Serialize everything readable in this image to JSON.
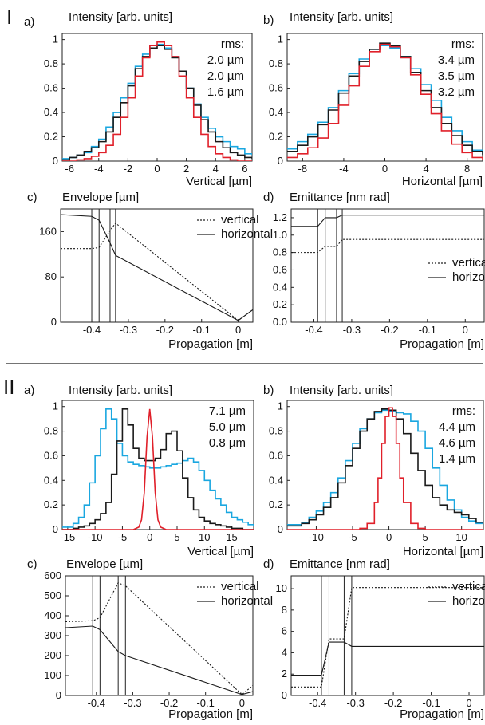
{
  "colors": {
    "blue": "#1aa7e0",
    "black": "#1a1a1a",
    "red": "#e0202a"
  },
  "sections": [
    "I",
    "II"
  ],
  "divider": true,
  "chart_data": [
    {
      "id": "Ia",
      "type": "line",
      "section": "I",
      "panel": "a)",
      "title": "Intensity [arb. units]",
      "xlabel": "Vertical [µm]",
      "ylabel": "",
      "xlim": [
        -6.5,
        6.5
      ],
      "ylim": [
        0,
        1.05
      ],
      "xticks": [
        -6,
        -4,
        -2,
        0,
        2,
        4,
        6
      ],
      "yticks": [
        0,
        0.2,
        0.4,
        0.6,
        0.8,
        1
      ],
      "legend_title": "rms:",
      "series": [
        {
          "name": "2.0 µm",
          "color": "blue",
          "step": true,
          "x": [
            -6.5,
            -6,
            -5.5,
            -5,
            -4.5,
            -4,
            -3.5,
            -3,
            -2.5,
            -2,
            -1.5,
            -1,
            -0.5,
            0,
            0.5,
            1,
            1.5,
            2,
            2.5,
            3,
            3.5,
            4,
            4.5,
            5,
            5.5,
            6,
            6.5
          ],
          "y": [
            0.02,
            0.03,
            0.05,
            0.07,
            0.12,
            0.18,
            0.28,
            0.4,
            0.52,
            0.64,
            0.78,
            0.88,
            0.95,
            0.96,
            0.93,
            0.86,
            0.74,
            0.6,
            0.47,
            0.36,
            0.27,
            0.2,
            0.16,
            0.12,
            0.1,
            0.06,
            0.05
          ]
        },
        {
          "name": "2.0 µm",
          "color": "black",
          "step": true,
          "x": [
            -6.5,
            -6,
            -5.5,
            -5,
            -4.5,
            -4,
            -3.5,
            -3,
            -2.5,
            -2,
            -1.5,
            -1,
            -0.5,
            0,
            0.5,
            1,
            1.5,
            2,
            2.5,
            3,
            3.5,
            4,
            4.5,
            5,
            5.5,
            6,
            6.5
          ],
          "y": [
            0.01,
            0.03,
            0.05,
            0.08,
            0.11,
            0.16,
            0.24,
            0.36,
            0.48,
            0.62,
            0.76,
            0.86,
            0.93,
            0.95,
            0.92,
            0.85,
            0.74,
            0.6,
            0.46,
            0.34,
            0.24,
            0.16,
            0.11,
            0.07,
            0.05,
            0.03,
            0.02
          ]
        },
        {
          "name": "1.6 µm",
          "color": "red",
          "step": true,
          "x": [
            -6.5,
            -6,
            -5.5,
            -5,
            -4.5,
            -4,
            -3.5,
            -3,
            -2.5,
            -2,
            -1.5,
            -1,
            -0.5,
            0,
            0.5,
            1,
            1.5,
            2,
            2.5,
            3,
            3.5,
            4,
            4.5,
            5,
            5.5,
            6,
            6.5
          ],
          "y": [
            0,
            0,
            0.01,
            0.02,
            0.04,
            0.07,
            0.13,
            0.22,
            0.36,
            0.52,
            0.7,
            0.85,
            0.95,
            0.98,
            0.95,
            0.86,
            0.7,
            0.52,
            0.36,
            0.22,
            0.12,
            0.06,
            0.03,
            0.01,
            0,
            0,
            0
          ]
        }
      ]
    },
    {
      "id": "Ib",
      "type": "line",
      "section": "I",
      "panel": "b)",
      "title": "Intensity [arb. units]",
      "xlabel": "Horizontal [µm]",
      "ylabel": "",
      "xlim": [
        -9.5,
        9.5
      ],
      "ylim": [
        0,
        1.05
      ],
      "xticks": [
        -8,
        -4,
        0,
        4,
        8
      ],
      "yticks": [
        0,
        0.2,
        0.4,
        0.6,
        0.8,
        1
      ],
      "legend_title": "rms:",
      "series": [
        {
          "name": "3.4 µm",
          "color": "blue",
          "step": true,
          "x": [
            -9.5,
            -8.5,
            -7.5,
            -6.5,
            -5.5,
            -4.5,
            -3.5,
            -2.5,
            -1.5,
            -0.5,
            0.5,
            1.5,
            2.5,
            3.5,
            4.5,
            5.5,
            6.5,
            7.5,
            8.5,
            9.5
          ],
          "y": [
            0.1,
            0.16,
            0.22,
            0.32,
            0.44,
            0.58,
            0.72,
            0.84,
            0.92,
            0.95,
            0.93,
            0.86,
            0.76,
            0.63,
            0.5,
            0.36,
            0.25,
            0.16,
            0.09,
            0.06
          ]
        },
        {
          "name": "3.5 µm",
          "color": "black",
          "step": true,
          "x": [
            -9.5,
            -8.5,
            -7.5,
            -6.5,
            -5.5,
            -4.5,
            -3.5,
            -2.5,
            -1.5,
            -0.5,
            0.5,
            1.5,
            2.5,
            3.5,
            4.5,
            5.5,
            6.5,
            7.5,
            8.5,
            9.5
          ],
          "y": [
            0.08,
            0.13,
            0.2,
            0.3,
            0.42,
            0.56,
            0.7,
            0.82,
            0.92,
            0.97,
            0.95,
            0.86,
            0.73,
            0.58,
            0.44,
            0.31,
            0.21,
            0.13,
            0.08,
            0.05
          ]
        },
        {
          "name": "3.2 µm",
          "color": "red",
          "step": true,
          "x": [
            -9.5,
            -8.5,
            -7.5,
            -6.5,
            -5.5,
            -4.5,
            -3.5,
            -2.5,
            -1.5,
            -0.5,
            0.5,
            1.5,
            2.5,
            3.5,
            4.5,
            5.5,
            6.5,
            7.5,
            8.5,
            9.5
          ],
          "y": [
            0.03,
            0.06,
            0.11,
            0.19,
            0.31,
            0.46,
            0.62,
            0.78,
            0.9,
            0.96,
            0.94,
            0.85,
            0.71,
            0.55,
            0.39,
            0.25,
            0.14,
            0.07,
            0.03,
            0.01
          ]
        }
      ]
    },
    {
      "id": "Ic",
      "type": "line",
      "section": "I",
      "panel": "c)",
      "title": "Envelope [µm]",
      "xlabel": "Propagation [m]",
      "ylabel": "",
      "xlim": [
        -0.485,
        0.04
      ],
      "ylim": [
        0,
        200
      ],
      "xticks": [
        -0.4,
        -0.3,
        -0.2,
        -0.1,
        0
      ],
      "yticks": [
        0,
        80,
        160
      ],
      "vlines": [
        -0.4,
        -0.38,
        -0.35,
        -0.335
      ],
      "series": [
        {
          "name": "vertical",
          "dash": true,
          "x": [
            -0.485,
            -0.4,
            -0.38,
            -0.35,
            -0.335,
            0,
            0.04
          ],
          "y": [
            130,
            130,
            132,
            162,
            175,
            3,
            22
          ]
        },
        {
          "name": "horizontal",
          "dash": false,
          "x": [
            -0.485,
            -0.4,
            -0.38,
            -0.35,
            -0.335,
            0,
            0.04
          ],
          "y": [
            190,
            187,
            180,
            140,
            118,
            3,
            22
          ]
        }
      ]
    },
    {
      "id": "Id",
      "type": "line",
      "section": "I",
      "panel": "d)",
      "title": "Emittance [nm rad]",
      "xlabel": "Propagation [m]",
      "ylabel": "",
      "xlim": [
        -0.46,
        0.05
      ],
      "ylim": [
        0,
        1.3
      ],
      "xticks": [
        -0.4,
        -0.3,
        -0.2,
        -0.1,
        0
      ],
      "yticks": [
        0,
        0.2,
        0.4,
        0.6,
        0.8,
        1.0,
        1.2
      ],
      "vlines": [
        -0.39,
        -0.37,
        -0.34,
        -0.325
      ],
      "series": [
        {
          "name": "vertical",
          "dash": true,
          "x": [
            -0.46,
            -0.39,
            -0.37,
            -0.34,
            -0.325,
            0.05
          ],
          "y": [
            0.8,
            0.8,
            0.87,
            0.87,
            0.95,
            0.95
          ]
        },
        {
          "name": "horizontal",
          "dash": false,
          "x": [
            -0.46,
            -0.39,
            -0.37,
            -0.34,
            -0.325,
            0.05
          ],
          "y": [
            1.1,
            1.1,
            1.2,
            1.2,
            1.23,
            1.23
          ]
        }
      ]
    },
    {
      "id": "IIa",
      "type": "line",
      "section": "II",
      "panel": "a)",
      "title": "Intensity [arb. units]",
      "xlabel": "Vertical [µm]",
      "ylabel": "",
      "xlim": [
        -16,
        19
      ],
      "ylim": [
        0,
        1.05
      ],
      "xticks": [
        -15,
        -10,
        -5,
        0,
        5,
        10,
        15
      ],
      "yticks": [
        0,
        0.2,
        0.4,
        0.6,
        0.8,
        1
      ],
      "legend_title": "",
      "series": [
        {
          "name": "7.1 µm",
          "color": "blue",
          "step": true,
          "x": [
            -16,
            -14,
            -13,
            -12,
            -11,
            -10,
            -9,
            -8,
            -7,
            -6,
            -5,
            -4,
            -3,
            -2,
            -1,
            0,
            1,
            2,
            3,
            4,
            5,
            6,
            7,
            8,
            9,
            10,
            11,
            12,
            13,
            14,
            15,
            16,
            17,
            18,
            19
          ],
          "y": [
            0.02,
            0.05,
            0.1,
            0.2,
            0.38,
            0.6,
            0.82,
            0.98,
            0.9,
            0.7,
            0.6,
            0.55,
            0.53,
            0.52,
            0.51,
            0.5,
            0.5,
            0.51,
            0.52,
            0.53,
            0.54,
            0.56,
            0.58,
            0.55,
            0.48,
            0.4,
            0.32,
            0.25,
            0.2,
            0.14,
            0.1,
            0.08,
            0.06,
            0.04,
            0.03
          ]
        },
        {
          "name": "5.0 µm",
          "color": "black",
          "step": true,
          "x": [
            -16,
            -14,
            -13,
            -12,
            -11,
            -10,
            -9,
            -8,
            -7,
            -6,
            -5,
            -4,
            -3,
            -2,
            -1,
            0,
            1,
            2,
            3,
            4,
            5,
            6,
            7,
            8,
            9,
            10,
            11,
            12,
            13,
            14,
            15,
            16,
            17,
            18,
            19
          ],
          "y": [
            0,
            0.01,
            0.02,
            0.03,
            0.05,
            0.08,
            0.13,
            0.22,
            0.45,
            0.72,
            0.98,
            0.85,
            0.66,
            0.58,
            0.56,
            0.56,
            0.58,
            0.65,
            0.78,
            0.8,
            0.64,
            0.42,
            0.26,
            0.16,
            0.1,
            0.07,
            0.05,
            0.04,
            0.03,
            0.02,
            0.01,
            0.01,
            0,
            0,
            0
          ]
        },
        {
          "name": "0.8 µm",
          "color": "red",
          "step": false,
          "x": [
            -16,
            -3,
            -2,
            -1.5,
            -1,
            -0.5,
            0,
            0.5,
            1,
            1.5,
            2,
            3,
            19
          ],
          "y": [
            0,
            0,
            0.02,
            0.08,
            0.3,
            0.75,
            0.98,
            0.75,
            0.3,
            0.08,
            0.02,
            0,
            0
          ]
        }
      ]
    },
    {
      "id": "IIb",
      "type": "line",
      "section": "II",
      "panel": "b)",
      "title": "Intensity [arb. units]",
      "xlabel": "Horizontal [µm]",
      "ylabel": "",
      "xlim": [
        -14,
        13
      ],
      "ylim": [
        0,
        1.05
      ],
      "xticks": [
        -10,
        -5,
        0,
        5,
        10
      ],
      "yticks": [
        0,
        0.2,
        0.4,
        0.6,
        0.8,
        1
      ],
      "legend_title": "rms:",
      "series": [
        {
          "name": "4.4 µm",
          "color": "blue",
          "step": true,
          "x": [
            -14,
            -12,
            -11,
            -10,
            -9,
            -8,
            -7,
            -6,
            -5,
            -4,
            -3,
            -2,
            -1,
            0,
            1,
            2,
            3,
            4,
            5,
            6,
            7,
            8,
            9,
            10,
            11,
            12,
            13
          ],
          "y": [
            0.04,
            0.06,
            0.1,
            0.15,
            0.22,
            0.3,
            0.42,
            0.56,
            0.7,
            0.82,
            0.9,
            0.95,
            0.97,
            0.96,
            0.95,
            0.94,
            0.88,
            0.8,
            0.66,
            0.5,
            0.36,
            0.24,
            0.16,
            0.1,
            0.07,
            0.05,
            0.04
          ]
        },
        {
          "name": "4.6 µm",
          "color": "black",
          "step": true,
          "x": [
            -14,
            -12,
            -11,
            -10,
            -9,
            -8,
            -7,
            -6,
            -5,
            -4,
            -3,
            -2,
            -1,
            0,
            1,
            2,
            3,
            4,
            5,
            6,
            7,
            8,
            9,
            10,
            11,
            12,
            13
          ],
          "y": [
            0.03,
            0.05,
            0.08,
            0.12,
            0.18,
            0.26,
            0.38,
            0.52,
            0.66,
            0.8,
            0.9,
            0.96,
            0.98,
            0.97,
            0.9,
            0.78,
            0.62,
            0.48,
            0.36,
            0.26,
            0.2,
            0.16,
            0.14,
            0.12,
            0.09,
            0.06,
            0.04
          ]
        },
        {
          "name": "1.4 µm",
          "color": "red",
          "step": true,
          "x": [
            -14,
            -5,
            -4,
            -3,
            -2,
            -1.5,
            -1,
            -0.5,
            0,
            0.5,
            1,
            1.5,
            2,
            3,
            4,
            5,
            13
          ],
          "y": [
            0,
            0,
            0.01,
            0.05,
            0.22,
            0.42,
            0.7,
            0.92,
            0.99,
            0.92,
            0.7,
            0.42,
            0.22,
            0.05,
            0.01,
            0,
            0
          ]
        }
      ]
    },
    {
      "id": "IIc",
      "type": "line",
      "section": "II",
      "panel": "c)",
      "title": "Envelope [µm]",
      "xlabel": "Propagation [m]",
      "ylabel": "",
      "xlim": [
        -0.485,
        0.03
      ],
      "ylim": [
        0,
        600
      ],
      "xticks": [
        -0.4,
        -0.3,
        -0.2,
        -0.1,
        0
      ],
      "yticks": [
        0,
        100,
        200,
        300,
        400,
        500,
        600
      ],
      "vlines": [
        -0.41,
        -0.39,
        -0.34,
        -0.32
      ],
      "series": [
        {
          "name": "vertical",
          "dash": true,
          "x": [
            -0.485,
            -0.41,
            -0.39,
            -0.34,
            -0.32,
            0,
            0.03
          ],
          "y": [
            370,
            375,
            390,
            565,
            550,
            5,
            50
          ]
        },
        {
          "name": "horizontal",
          "dash": false,
          "x": [
            -0.485,
            -0.41,
            -0.39,
            -0.34,
            -0.32,
            0,
            0.03
          ],
          "y": [
            340,
            348,
            330,
            220,
            200,
            5,
            20
          ]
        }
      ]
    },
    {
      "id": "IId",
      "type": "line",
      "section": "II",
      "panel": "d)",
      "title": "Emittance [nm rad]",
      "xlabel": "Propagation [m]",
      "ylabel": "",
      "xlim": [
        -0.47,
        0.04
      ],
      "ylim": [
        0,
        11.2
      ],
      "xticks": [
        -0.4,
        -0.3,
        -0.2,
        -0.1,
        0
      ],
      "yticks": [
        0,
        2,
        4,
        6,
        8,
        10
      ],
      "vlines": [
        -0.39,
        -0.37,
        -0.33,
        -0.31
      ],
      "series": [
        {
          "name": "vertical",
          "dash": true,
          "x": [
            -0.47,
            -0.39,
            -0.37,
            -0.33,
            -0.31,
            0.04
          ],
          "y": [
            0.8,
            0.8,
            5.3,
            5.3,
            10.1,
            10.1
          ]
        },
        {
          "name": "horizontal",
          "dash": false,
          "x": [
            -0.47,
            -0.39,
            -0.37,
            -0.33,
            -0.31,
            0.04
          ],
          "y": [
            1.9,
            1.9,
            5.0,
            5.0,
            4.6,
            4.6
          ]
        }
      ]
    }
  ]
}
